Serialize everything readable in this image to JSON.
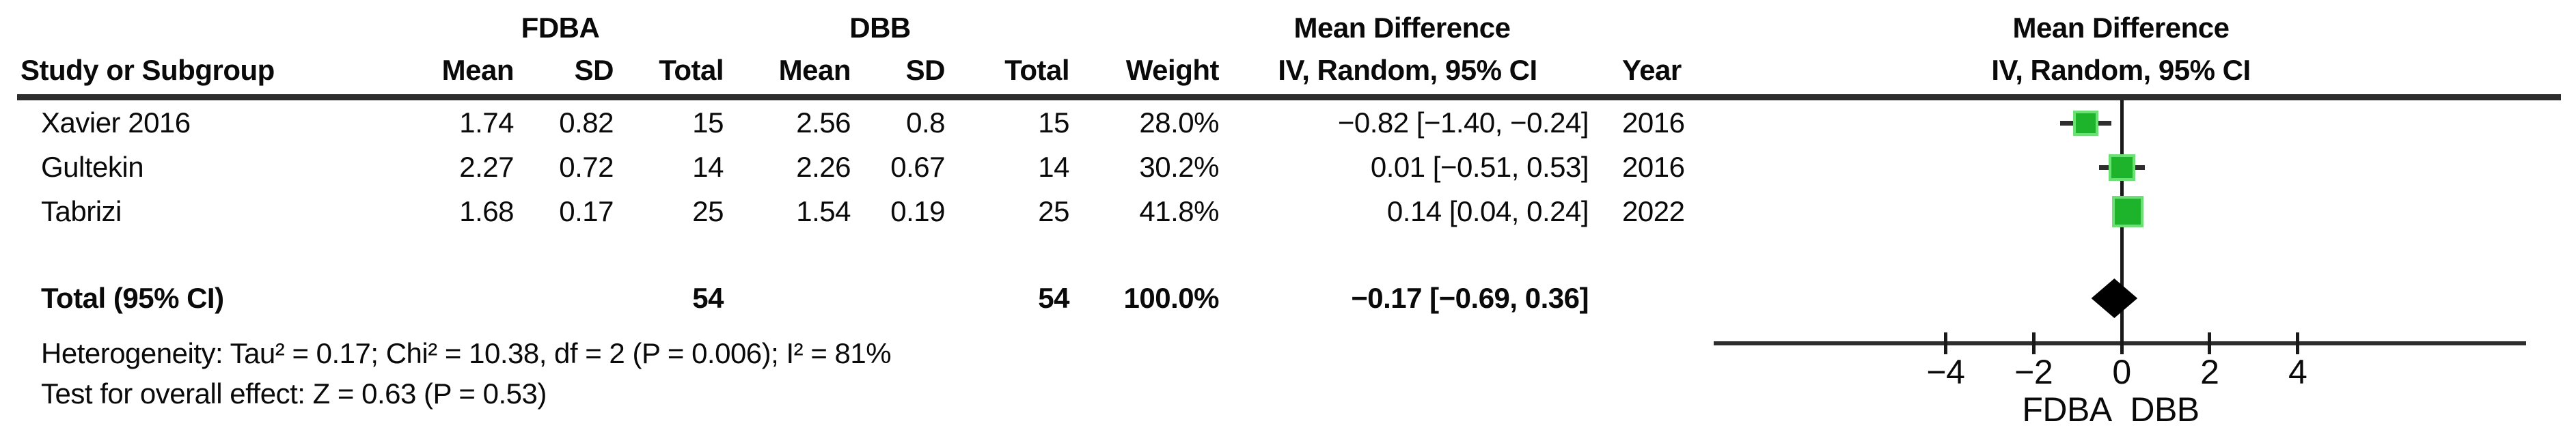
{
  "table": {
    "group_headers": {
      "fdba": "FDBA",
      "dbb": "DBB",
      "md_table": "Mean Difference",
      "md_plot": "Mean Difference"
    },
    "col_headers": {
      "study": "Study or Subgroup",
      "mean1": "Mean",
      "sd1": "SD",
      "total1": "Total",
      "mean2": "Mean",
      "sd2": "SD",
      "total2": "Total",
      "weight": "Weight",
      "ci": "IV, Random, 95% CI",
      "year": "Year",
      "ci_plot": "IV, Random, 95% CI"
    },
    "rows": [
      {
        "study": "Xavier 2016",
        "mean1": "1.74",
        "sd1": "0.82",
        "total1": "15",
        "mean2": "2.56",
        "sd2": "0.8",
        "total2": "15",
        "weight": "28.0%",
        "ci": "−0.82 [−1.40, −0.24]",
        "year": "2016"
      },
      {
        "study": "Gultekin",
        "mean1": "2.27",
        "sd1": "0.72",
        "total1": "14",
        "mean2": "2.26",
        "sd2": "0.67",
        "total2": "14",
        "weight": "30.2%",
        "ci": "0.01 [−0.51, 0.53]",
        "year": "2016"
      },
      {
        "study": "Tabrizi",
        "mean1": "1.68",
        "sd1": "0.17",
        "total1": "25",
        "mean2": "1.54",
        "sd2": "0.19",
        "total2": "25",
        "weight": "41.8%",
        "ci": "0.14 [0.04, 0.24]",
        "year": "2022"
      }
    ],
    "total_row": {
      "label": "Total (95% CI)",
      "total1": "54",
      "total2": "54",
      "weight": "100.0%",
      "ci": "−0.17 [−0.69, 0.36]"
    },
    "footnotes": {
      "heterogeneity": "Heterogeneity: Tau² = 0.17; Chi² = 10.38, df = 2 (P = 0.006); I² = 81%",
      "overall_effect": "Test for overall effect: Z = 0.63 (P = 0.53)"
    }
  },
  "chart_data": {
    "type": "forest",
    "effect_measure": "Mean Difference",
    "model": "IV, Random, 95% CI",
    "studies": [
      {
        "name": "Xavier 2016",
        "md": -0.82,
        "ci_low": -1.4,
        "ci_high": -0.24,
        "weight_pct": 28.0,
        "year": 2016
      },
      {
        "name": "Gultekin",
        "md": 0.01,
        "ci_low": -0.51,
        "ci_high": 0.53,
        "weight_pct": 30.2,
        "year": 2016
      },
      {
        "name": "Tabrizi",
        "md": 0.14,
        "ci_low": 0.04,
        "ci_high": 0.24,
        "weight_pct": 41.8,
        "year": 2022
      }
    ],
    "total": {
      "md": -0.17,
      "ci_low": -0.69,
      "ci_high": 0.36,
      "total1": 54,
      "total2": 54,
      "weight_pct": 100.0
    },
    "heterogeneity": {
      "tau2": 0.17,
      "chi2": 10.38,
      "df": 2,
      "p": 0.006,
      "i2_pct": 81
    },
    "overall_effect": {
      "z": 0.63,
      "p": 0.53
    },
    "axis": {
      "ticks": [
        -4,
        -2,
        0,
        2,
        4
      ],
      "tick_labels": [
        "−4",
        "−2",
        "0",
        "2",
        "4"
      ],
      "xmin": -9.3,
      "xmax": 9.2,
      "left_label": "FDBA",
      "right_label": "DBB"
    },
    "marker_color": "#1db32a",
    "marker_halo_color": "#6ede77",
    "diamond_color": "#000000",
    "line_color": "#2d2d2d"
  }
}
